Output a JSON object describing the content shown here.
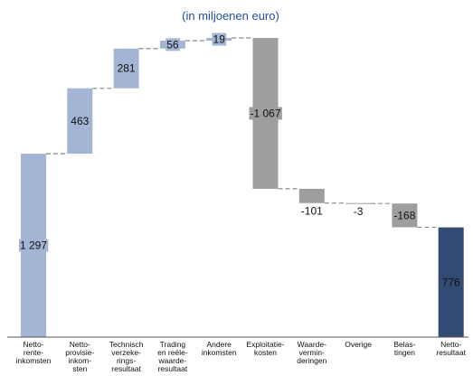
{
  "chart_data": {
    "type": "waterfall",
    "subtitle": "(in miljoenen euro)",
    "categories": [
      [
        "Netto-",
        "rente-",
        "inkomsten"
      ],
      [
        "Netto-",
        "provisie-",
        "inkom-",
        "sten"
      ],
      [
        "Technisch",
        "verzeke-",
        "rings-",
        "resultaat"
      ],
      [
        "Trading",
        "en reële-",
        "waarde-",
        "resultaat"
      ],
      [
        "Andere",
        "inkomsten"
      ],
      [
        "Exploitatie-",
        "kosten"
      ],
      [
        "Waarde-",
        "vermin-",
        "deringen"
      ],
      [
        "Overige"
      ],
      [
        "Belas-",
        "tingen"
      ],
      [
        "Netto-",
        "resultaat"
      ]
    ],
    "values": [
      1297,
      463,
      281,
      56,
      19,
      -1067,
      -101,
      -3,
      -168,
      776
    ],
    "labels": [
      "1 297",
      "463",
      "281",
      "56",
      "19",
      "-1 067",
      "-101",
      "-3",
      "-168",
      "776"
    ],
    "kinds": [
      "start",
      "up",
      "up",
      "up",
      "up",
      "down",
      "down",
      "down",
      "down",
      "total"
    ],
    "colors": {
      "positive": "#a3b4d4",
      "negative": "#9e9e9e",
      "total": "#334b73",
      "connector": "#8a8a8a",
      "axis": "#555555"
    }
  }
}
